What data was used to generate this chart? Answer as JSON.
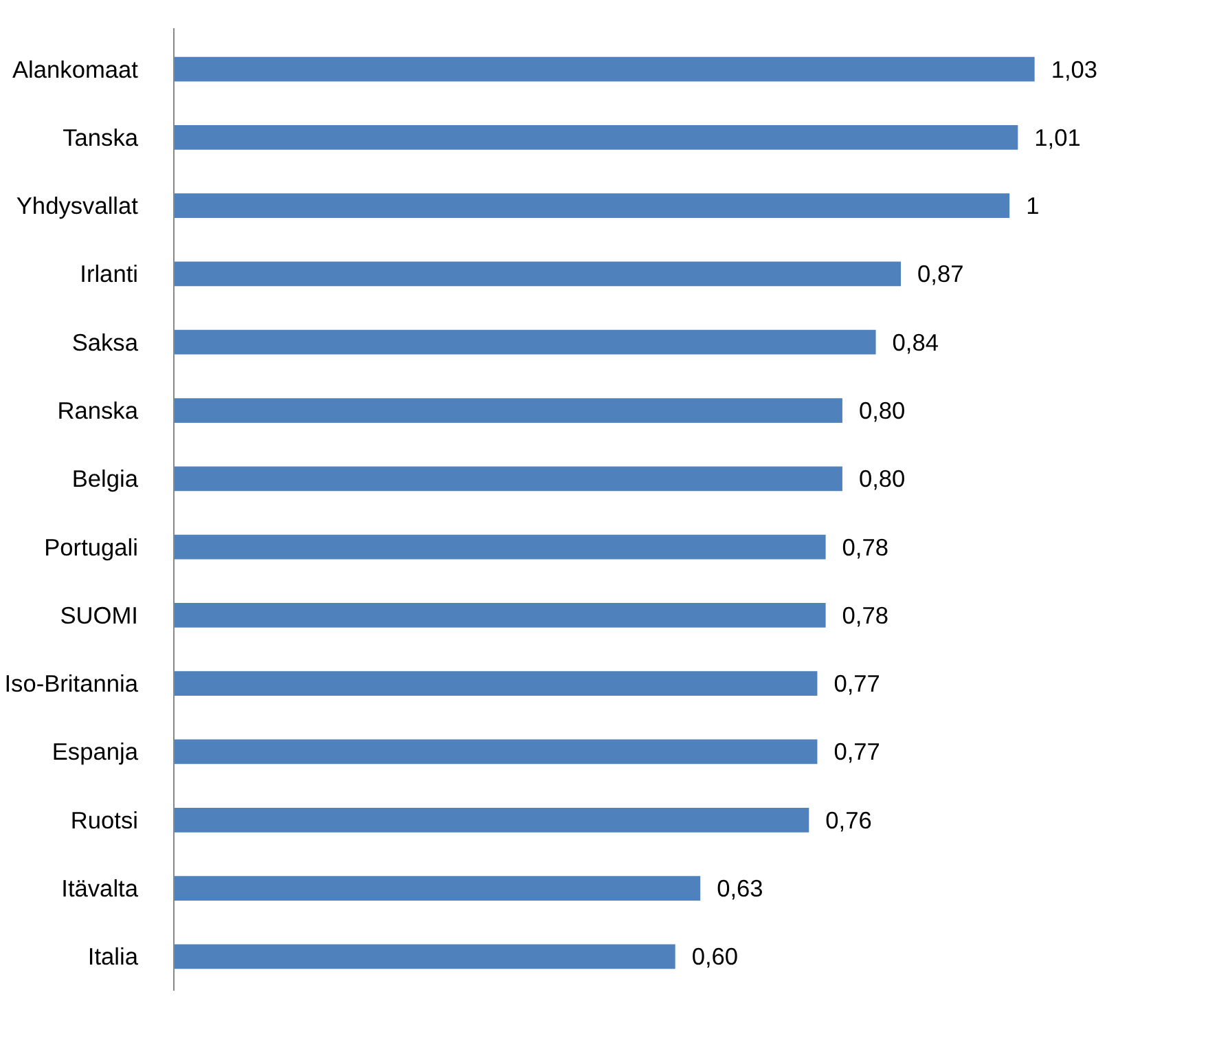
{
  "chart_data": {
    "type": "bar",
    "orientation": "horizontal",
    "categories": [
      "Alankomaat",
      "Tanska",
      "Yhdysvallat",
      "Irlanti",
      "Saksa",
      "Ranska",
      "Belgia",
      "Portugali",
      "SUOMI",
      "Iso-Britannia",
      "Espanja",
      "Ruotsi",
      "Itävalta",
      "Italia"
    ],
    "values": [
      1.03,
      1.01,
      1.0,
      0.87,
      0.84,
      0.8,
      0.8,
      0.78,
      0.78,
      0.77,
      0.77,
      0.76,
      0.63,
      0.6
    ],
    "value_labels": [
      "1,03",
      "1,01",
      "1",
      "0,87",
      "0,84",
      "0,80",
      "0,80",
      "0,78",
      "0,78",
      "0,77",
      "0,77",
      "0,76",
      "0,63",
      "0,60"
    ],
    "color": "#4f81bd",
    "grid": false
  }
}
